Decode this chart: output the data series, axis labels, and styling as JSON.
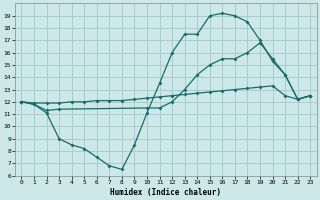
{
  "xlabel": "Humidex (Indice chaleur)",
  "bg_color": "#cce8e8",
  "grid_color": "#aacccc",
  "line_color": "#1a6b6b",
  "xlim": [
    -0.5,
    23.5
  ],
  "ylim": [
    6,
    20
  ],
  "xticks": [
    0,
    1,
    2,
    3,
    4,
    5,
    6,
    7,
    8,
    9,
    10,
    11,
    12,
    13,
    14,
    15,
    16,
    17,
    18,
    19,
    20,
    21,
    22,
    23
  ],
  "yticks": [
    6,
    7,
    8,
    9,
    10,
    11,
    12,
    13,
    14,
    15,
    16,
    17,
    18,
    19
  ],
  "line1_x": [
    0,
    1,
    2,
    3,
    4,
    5,
    6,
    7,
    8,
    9,
    10,
    11,
    12,
    13,
    14,
    15,
    16,
    17,
    18,
    19,
    20,
    21,
    22,
    23
  ],
  "line1_y": [
    12,
    11.9,
    11.9,
    11.9,
    12.0,
    12.0,
    12.1,
    12.1,
    12.1,
    12.2,
    12.3,
    12.4,
    12.5,
    12.6,
    12.7,
    12.8,
    12.9,
    13.0,
    13.1,
    13.2,
    13.3,
    12.5,
    12.2,
    12.5
  ],
  "line2_x": [
    0,
    1,
    2,
    3,
    4,
    5,
    6,
    7,
    8,
    9,
    10,
    11,
    12,
    13,
    14,
    15,
    16,
    17,
    18,
    19,
    20,
    21,
    22,
    23
  ],
  "line2_y": [
    12,
    11.8,
    11.1,
    9.0,
    8.5,
    8.2,
    7.5,
    6.8,
    6.5,
    8.5,
    11.1,
    13.5,
    16.0,
    17.5,
    17.5,
    19.0,
    19.2,
    19.0,
    18.5,
    17.0,
    15.3,
    14.2,
    12.2,
    12.5
  ],
  "line3_x": [
    0,
    1,
    2,
    3,
    10,
    11,
    12,
    13,
    14,
    15,
    16,
    17,
    18,
    19,
    20,
    21,
    22,
    23
  ],
  "line3_y": [
    12,
    11.8,
    11.3,
    11.4,
    11.5,
    11.5,
    12.0,
    13.0,
    14.2,
    15.0,
    15.5,
    15.5,
    16.0,
    16.8,
    15.5,
    14.2,
    12.2,
    12.5
  ]
}
